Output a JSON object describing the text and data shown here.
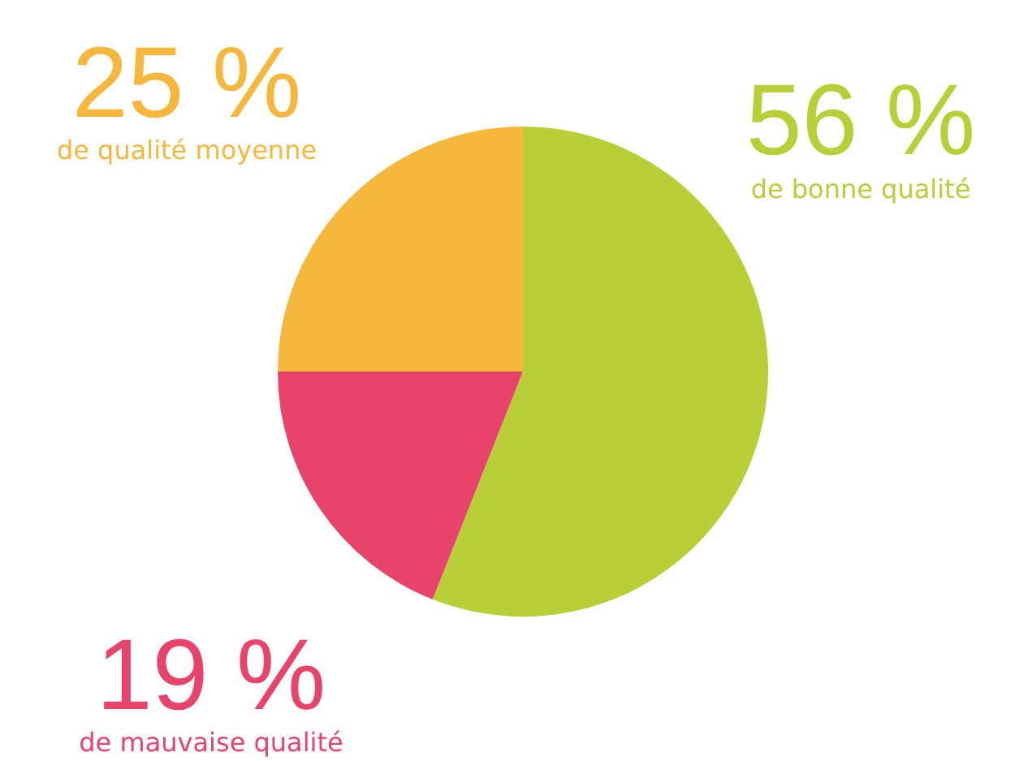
{
  "chart_data": {
    "type": "pie",
    "categories": [
      "de bonne qualité",
      "de mauvaise qualité",
      "de qualité moyenne"
    ],
    "values": [
      56,
      19,
      25
    ],
    "colors": [
      "#b8cf37",
      "#e8436b",
      "#f5b83d"
    ],
    "value_labels": [
      "56 %",
      "19 %",
      "25 %"
    ]
  }
}
